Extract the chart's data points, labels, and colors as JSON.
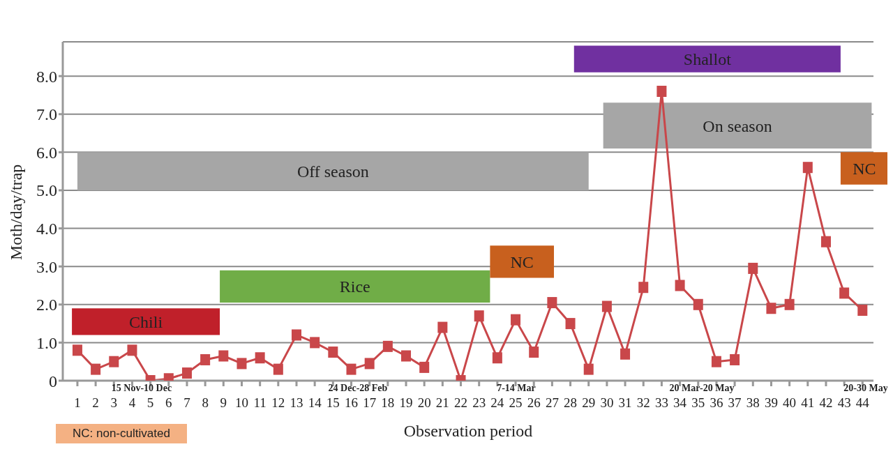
{
  "chart_data": {
    "type": "line",
    "xlabel": "Observation period",
    "ylabel": "Moth/day/trap",
    "x": [
      1,
      2,
      3,
      4,
      5,
      6,
      7,
      8,
      9,
      10,
      11,
      12,
      13,
      14,
      15,
      16,
      17,
      18,
      19,
      20,
      21,
      22,
      23,
      24,
      25,
      26,
      27,
      28,
      29,
      30,
      31,
      32,
      33,
      34,
      35,
      36,
      37,
      38,
      39,
      40,
      41,
      42,
      43,
      44
    ],
    "series": [
      {
        "color": "#c9474a",
        "values": [
          0.8,
          0.3,
          0.5,
          0.8,
          0,
          0.05,
          0.2,
          0.55,
          0.65,
          0.45,
          0.6,
          0.3,
          1.2,
          1,
          0.75,
          0.3,
          0.45,
          0.9,
          0.65,
          0.35,
          1.4,
          0,
          1.7,
          0.6,
          1.6,
          0.75,
          2.05,
          1.5,
          0.3,
          1.95,
          0.7,
          2.45,
          7.6,
          2.5,
          2,
          0.5,
          0.55,
          2.95,
          1.9,
          2,
          5.6,
          3.65,
          2.3,
          1.85
        ]
      }
    ],
    "xlim": [
      0.2,
      44.6
    ],
    "xticks": [
      1,
      2,
      3,
      4,
      5,
      6,
      7,
      8,
      9,
      10,
      11,
      12,
      13,
      14,
      15,
      16,
      17,
      18,
      19,
      20,
      21,
      22,
      23,
      24,
      25,
      26,
      27,
      28,
      29,
      30,
      31,
      32,
      33,
      34,
      35,
      36,
      37,
      38,
      39,
      40,
      41,
      42,
      43,
      44
    ],
    "ylim": [
      0,
      8.9
    ],
    "yticks": [
      0,
      {
        "value": 1,
        "label": "1.0"
      },
      {
        "value": 2,
        "label": "2.0"
      },
      {
        "value": 3,
        "label": "3.0"
      },
      {
        "value": 4,
        "label": "4.0"
      },
      {
        "value": 5,
        "label": "5.0"
      },
      {
        "value": 6,
        "label": "6.0"
      },
      {
        "value": 7,
        "label": "7.0"
      },
      {
        "value": 8,
        "label": "8.0"
      }
    ],
    "grid": "y",
    "legend": false,
    "marker": "square",
    "line_style": "solid",
    "bands": [
      {
        "axis": "x",
        "from": 0.7,
        "to": 8.8,
        "label": "Chili",
        "color": "#c0202a"
      },
      {
        "axis": "x",
        "from": 8.8,
        "to": 23.6,
        "label": "Rice",
        "color": "#70ad47"
      },
      {
        "axis": "x",
        "from": 23.6,
        "to": 27.1,
        "label": "NC",
        "color": "#c8601e"
      },
      {
        "axis": "x",
        "from": 1,
        "to": 29,
        "label": "Off season",
        "color": "#a6a6a6"
      },
      {
        "axis": "x",
        "from": 28.2,
        "to": 42.8,
        "label": "Shallot",
        "color": "#7030a0"
      },
      {
        "axis": "x",
        "from": 29.8,
        "to": 44.5,
        "label": "On season",
        "color": "#a6a6a6"
      },
      {
        "axis": "x",
        "from": 42.8,
        "to": 45.4,
        "label": "NC",
        "color": "#c8601e"
      }
    ],
    "annotations": [
      "15 Nov-10 Dec",
      "24 Dec-28 Feb",
      "7-14 Mar",
      "20 Mar-20 May",
      "20-30 May",
      "NC: non-cultivated"
    ]
  }
}
